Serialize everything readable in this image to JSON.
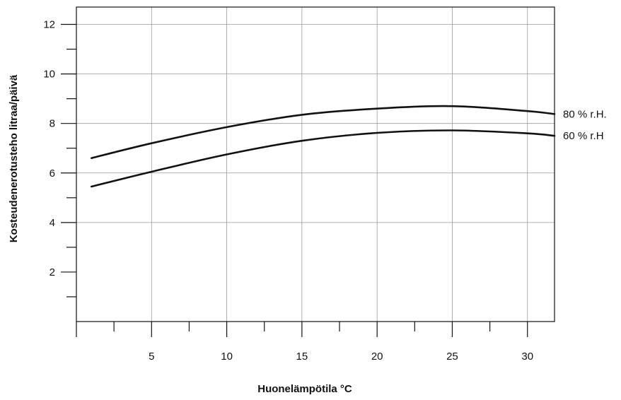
{
  "chart_data": {
    "type": "line",
    "xlabel": "Huonelämpötila °C",
    "ylabel": "Kosteudenerotusteho litraa/päivä",
    "xlim": [
      0,
      31.8
    ],
    "ylim": [
      0,
      12.7
    ],
    "x_ticks": [
      5,
      10,
      15,
      20,
      25,
      30
    ],
    "x_minor_ticks": [
      2.5,
      7.5,
      12.5,
      17.5,
      22.5,
      27.5
    ],
    "y_ticks": [
      2,
      4,
      6,
      8,
      10,
      12
    ],
    "y_minor_ticks": [
      1,
      3,
      5,
      7,
      9,
      11
    ],
    "x_grid": [
      5,
      10,
      15,
      20,
      25,
      30
    ],
    "y_grid": [
      4,
      6,
      8,
      10,
      12
    ],
    "grid": true,
    "legend": "inline-right",
    "series": [
      {
        "name": "80 % r.H.",
        "color": "#111111",
        "x": [
          1,
          5,
          10,
          15,
          20,
          25,
          30,
          31.8
        ],
        "y": [
          6.6,
          7.2,
          7.85,
          8.35,
          8.6,
          8.7,
          8.5,
          8.38
        ]
      },
      {
        "name": "60 % r.H",
        "color": "#111111",
        "x": [
          1,
          5,
          10,
          15,
          20,
          25,
          30,
          31.8
        ],
        "y": [
          5.45,
          6.05,
          6.75,
          7.3,
          7.62,
          7.72,
          7.6,
          7.5
        ]
      }
    ]
  }
}
